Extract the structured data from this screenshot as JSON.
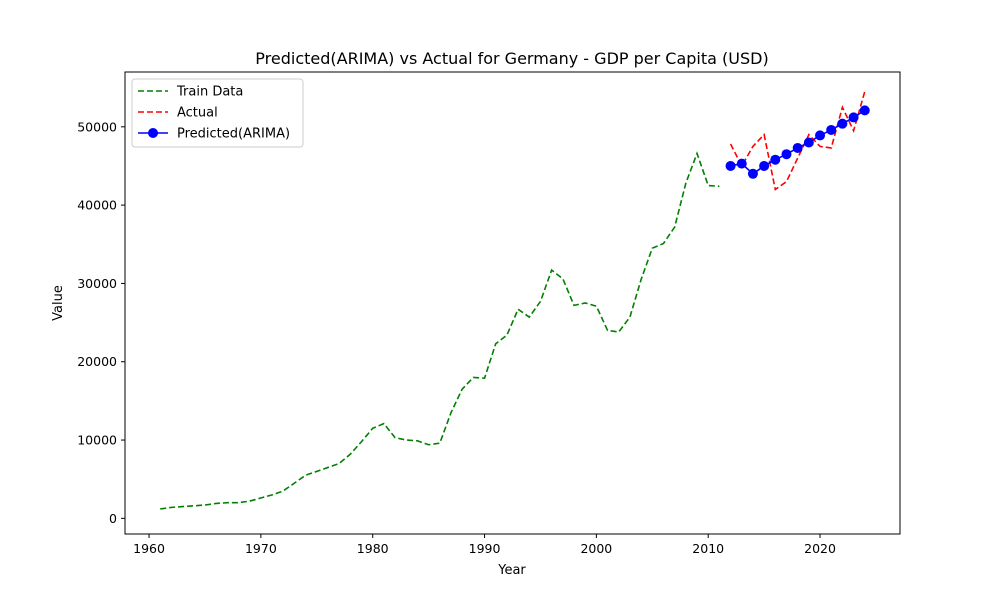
{
  "chart_data": {
    "type": "line",
    "title": "Predicted(ARIMA) vs Actual for Germany - GDP per Capita (USD)",
    "xlabel": "Year",
    "ylabel": "Value",
    "xlim": [
      1957.85,
      2027.15
    ],
    "ylim": [
      -2000,
      57000
    ],
    "xticks": [
      1960,
      1970,
      1980,
      1990,
      2000,
      2010,
      2020
    ],
    "yticks": [
      0,
      10000,
      20000,
      30000,
      40000,
      50000
    ],
    "legend_position": "top-left",
    "series": [
      {
        "name": "Train Data",
        "color": "#008000",
        "style": "dashed",
        "x": [
          1961,
          1962,
          1963,
          1964,
          1965,
          1966,
          1967,
          1968,
          1969,
          1970,
          1971,
          1972,
          1973,
          1974,
          1975,
          1976,
          1977,
          1978,
          1979,
          1980,
          1981,
          1982,
          1983,
          1984,
          1985,
          1986,
          1987,
          1988,
          1989,
          1990,
          1991,
          1992,
          1993,
          1994,
          1995,
          1996,
          1997,
          1998,
          1999,
          2000,
          2001,
          2002,
          2003,
          2004,
          2005,
          2006,
          2007,
          2008,
          2009,
          2010,
          2011
        ],
        "values": [
          1200,
          1400,
          1500,
          1600,
          1700,
          1900,
          2000,
          2000,
          2200,
          2600,
          3000,
          3500,
          4500,
          5500,
          6000,
          6500,
          7000,
          8200,
          9800,
          11500,
          12100,
          10300,
          10000,
          9900,
          9400,
          9600,
          13500,
          16500,
          18000,
          17900,
          22300,
          23400,
          26700,
          25700,
          27700,
          31700,
          30600,
          27200,
          27500,
          27100,
          24000,
          23800,
          25700,
          30500,
          34500,
          35100,
          37200,
          42800,
          46600,
          42500,
          42400
        ]
      },
      {
        "name": "Actual",
        "color": "#ff0000",
        "style": "dashed",
        "x": [
          2012,
          2013,
          2014,
          2015,
          2016,
          2017,
          2018,
          2019,
          2020,
          2021,
          2022,
          2023,
          2024
        ],
        "values": [
          47800,
          45000,
          47500,
          49000,
          42000,
          43000,
          46000,
          49000,
          47500,
          47300,
          52500,
          49500,
          54500
        ]
      },
      {
        "name": "Predicted(ARIMA)",
        "color": "#0000ff",
        "style": "solid-marker",
        "x": [
          2012,
          2013,
          2014,
          2015,
          2016,
          2017,
          2018,
          2019,
          2020,
          2021,
          2022,
          2023,
          2024
        ],
        "values": [
          45000,
          45300,
          44000,
          45000,
          45800,
          46500,
          47300,
          48000,
          48900,
          49600,
          50400,
          51200,
          52100
        ]
      }
    ]
  }
}
